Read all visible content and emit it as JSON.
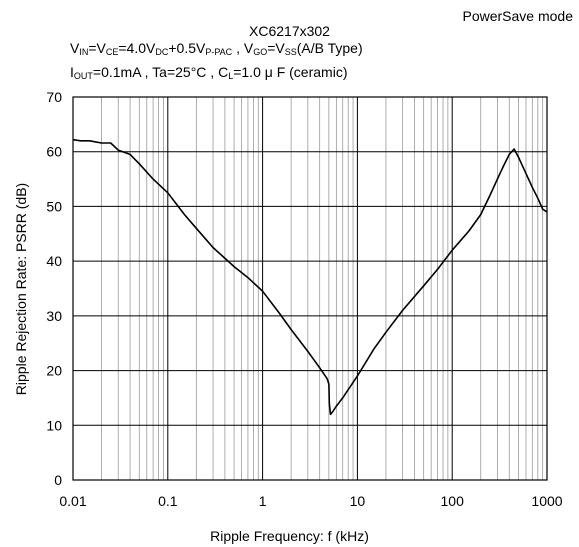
{
  "header": {
    "mode": "PowerSave mode",
    "title": "XC6217x302"
  },
  "chart_data": {
    "type": "line",
    "title": "XC6217x302",
    "xlabel": "Ripple Frequency: f (kHz)",
    "ylabel": "Ripple Rejection Rate: PSRR (dB)",
    "xscale": "log",
    "xlim": [
      0.01,
      1000
    ],
    "ylim": [
      0,
      70
    ],
    "grid": true,
    "x_ticks": [
      "0.01",
      "0.1",
      "1",
      "10",
      "100",
      "1000"
    ],
    "y_ticks": [
      "0",
      "10",
      "20",
      "30",
      "40",
      "50",
      "60",
      "70"
    ],
    "series": [
      {
        "color": "#000000",
        "points": [
          [
            0.01,
            62.2
          ],
          [
            0.012,
            62.0
          ],
          [
            0.015,
            62.0
          ],
          [
            0.02,
            61.6
          ],
          [
            0.025,
            61.6
          ],
          [
            0.03,
            60.3
          ],
          [
            0.04,
            59.5
          ],
          [
            0.05,
            57.8
          ],
          [
            0.07,
            55.0
          ],
          [
            0.1,
            52.5
          ],
          [
            0.15,
            48.5
          ],
          [
            0.2,
            46.0
          ],
          [
            0.3,
            42.5
          ],
          [
            0.5,
            39.0
          ],
          [
            0.7,
            37.0
          ],
          [
            1.0,
            34.5
          ],
          [
            1.5,
            30.5
          ],
          [
            2.0,
            27.5
          ],
          [
            3.0,
            23.5
          ],
          [
            4.0,
            20.5
          ],
          [
            4.8,
            18.5
          ],
          [
            5.0,
            17.5
          ],
          [
            5.05,
            14.0
          ],
          [
            5.2,
            12.0
          ],
          [
            5.5,
            12.5
          ],
          [
            6.0,
            13.5
          ],
          [
            7.0,
            15.0
          ],
          [
            8.0,
            16.5
          ],
          [
            10.0,
            19.0
          ],
          [
            15.0,
            24.0
          ],
          [
            20.0,
            27.0
          ],
          [
            30.0,
            31.0
          ],
          [
            50.0,
            35.5
          ],
          [
            70.0,
            38.5
          ],
          [
            100.0,
            42.0
          ],
          [
            150.0,
            45.5
          ],
          [
            200.0,
            48.5
          ],
          [
            250.0,
            52.0
          ],
          [
            300.0,
            55.0
          ],
          [
            350.0,
            57.5
          ],
          [
            400.0,
            59.5
          ],
          [
            450.0,
            60.5
          ],
          [
            500.0,
            59.0
          ],
          [
            600.0,
            56.0
          ],
          [
            700.0,
            53.5
          ],
          [
            800.0,
            51.5
          ],
          [
            900.0,
            49.5
          ],
          [
            1000.0,
            49.0
          ]
        ]
      }
    ]
  }
}
